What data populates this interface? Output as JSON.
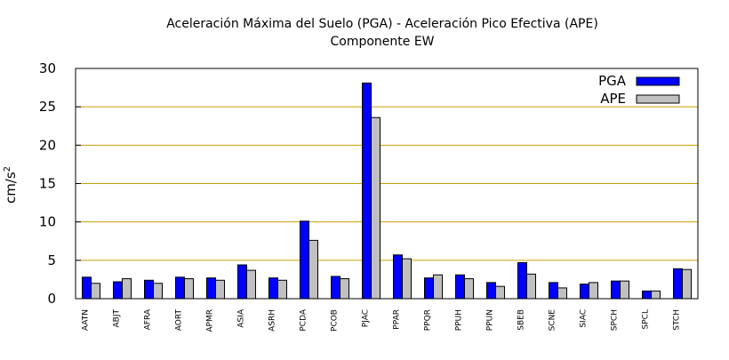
{
  "chart_data": {
    "type": "bar",
    "title_line1": "Aceleración Máxima del Suelo (PGA) -  Aceleración Pico Efectiva (APE)",
    "title_line2": "Componente EW",
    "ylabel_base": "cm/s",
    "ylabel_exp": "2",
    "xlabel": "",
    "ylim": [
      0,
      30
    ],
    "yticks": [
      "0",
      "5",
      "10",
      "15",
      "20",
      "25",
      "30"
    ],
    "grid": true,
    "legend_position": "top-right",
    "categories": [
      "AATN",
      "ABJT",
      "AFRA",
      "AORT",
      "APMR",
      "ASIA",
      "ASRH",
      "PCDA",
      "PCOB",
      "PJAC",
      "PPAR",
      "PPQR",
      "PPUH",
      "PPUN",
      "SBEB",
      "SCNE",
      "SIAC",
      "SPCH",
      "SPCL",
      "STCH"
    ],
    "series": [
      {
        "name": "PGA",
        "color": "#0000ff",
        "values": [
          2.8,
          2.2,
          2.4,
          2.8,
          2.7,
          4.4,
          2.7,
          10.1,
          2.9,
          28.1,
          5.7,
          2.7,
          3.1,
          2.1,
          4.7,
          2.1,
          1.9,
          2.3,
          1.0,
          3.9
        ]
      },
      {
        "name": "APE",
        "color": "#c0c0c0",
        "values": [
          2.0,
          2.6,
          2.0,
          2.6,
          2.4,
          3.7,
          2.4,
          7.6,
          2.6,
          23.6,
          5.2,
          3.1,
          2.6,
          1.6,
          3.2,
          1.4,
          2.1,
          2.3,
          1.0,
          3.8
        ]
      }
    ],
    "gridline_color": "#c8a000"
  }
}
